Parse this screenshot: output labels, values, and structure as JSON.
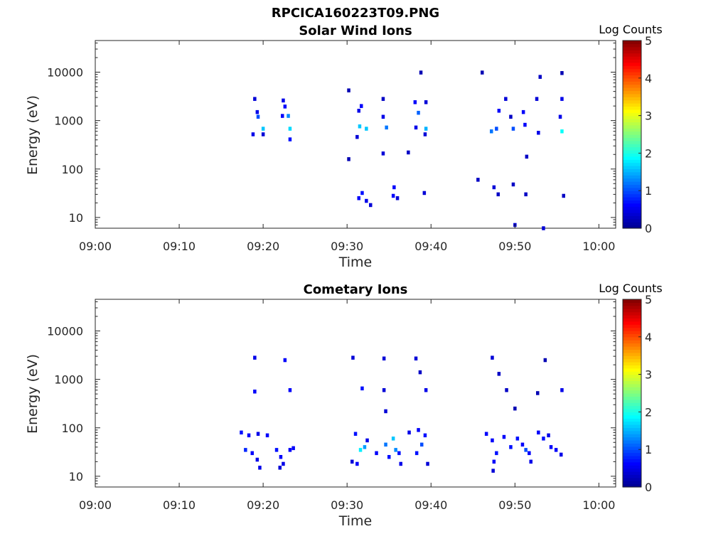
{
  "figure": {
    "title": "RPCICA160223T09.PNG"
  },
  "colors": {
    "colormap": [
      "#00008f",
      "#0000ff",
      "#0080ff",
      "#00ffff",
      "#80ff80",
      "#ffff00",
      "#ff8000",
      "#ff0000",
      "#800000"
    ]
  },
  "chart_data": [
    {
      "type": "heatmap",
      "title": "Solar Wind Ions",
      "xlabel": "Time",
      "ylabel": "Energy (eV)",
      "x_ticks": [
        "09:00",
        "09:10",
        "09:20",
        "09:30",
        "09:40",
        "09:50",
        "10:00"
      ],
      "x_tick_minutes": [
        0,
        10,
        20,
        30,
        40,
        50,
        60
      ],
      "xlim_minutes": [
        0,
        62
      ],
      "y_scale": "log",
      "ylim": [
        6,
        45000
      ],
      "y_ticks": [
        "10",
        "100",
        "1000",
        "10000"
      ],
      "y_tick_values": [
        10,
        100,
        1000,
        10000
      ],
      "colorbar": {
        "title": "Log Counts",
        "ticks": [
          "0",
          "1",
          "2",
          "3",
          "4",
          "5"
        ],
        "range": [
          0,
          5
        ]
      },
      "cells": [
        [
          19,
          2800,
          0.4
        ],
        [
          19.3,
          1500,
          0.5
        ],
        [
          19.4,
          1200,
          1.0
        ],
        [
          18.8,
          520,
          0.5
        ],
        [
          20.0,
          680,
          1.6
        ],
        [
          20.0,
          520,
          0.4
        ],
        [
          22.4,
          2600,
          0.5
        ],
        [
          22.6,
          1950,
          0.6
        ],
        [
          22.3,
          1250,
          0.6
        ],
        [
          23.0,
          1250,
          1.3
        ],
        [
          23.2,
          680,
          1.7
        ],
        [
          23.2,
          410,
          0.7
        ],
        [
          30.2,
          4200,
          0.2
        ],
        [
          31.4,
          1600,
          0.5
        ],
        [
          31.7,
          2000,
          0.6
        ],
        [
          31.5,
          760,
          1.6
        ],
        [
          32.3,
          680,
          1.6
        ],
        [
          31.2,
          460,
          0.4
        ],
        [
          30.2,
          160,
          0.2
        ],
        [
          31.4,
          25,
          0.6
        ],
        [
          31.8,
          32,
          0.7
        ],
        [
          32.3,
          22,
          0.5
        ],
        [
          32.8,
          18,
          0.4
        ],
        [
          34.3,
          2800,
          0.3
        ],
        [
          34.3,
          1200,
          0.5
        ],
        [
          34.7,
          720,
          1.2
        ],
        [
          34.3,
          210,
          0.4
        ],
        [
          35.5,
          28,
          0.6
        ],
        [
          35.6,
          42,
          0.6
        ],
        [
          36.0,
          25,
          0.4
        ],
        [
          38.1,
          2400,
          0.6
        ],
        [
          38.5,
          1450,
          1.1
        ],
        [
          38.2,
          720,
          0.5
        ],
        [
          39.4,
          680,
          1.5
        ],
        [
          39.3,
          520,
          0.4
        ],
        [
          39.2,
          32,
          0.4
        ],
        [
          37.3,
          220,
          0.3
        ],
        [
          39.4,
          2400,
          0.4
        ],
        [
          38.8,
          9800,
          0.2
        ],
        [
          46.1,
          9800,
          0.2
        ],
        [
          47.2,
          600,
          1.2
        ],
        [
          47.8,
          680,
          1.0
        ],
        [
          48.1,
          1600,
          0.6
        ],
        [
          47.5,
          42,
          0.4
        ],
        [
          48.9,
          2800,
          0.4
        ],
        [
          49.5,
          1200,
          0.3
        ],
        [
          49.8,
          680,
          1.0
        ],
        [
          51.0,
          1500,
          0.6
        ],
        [
          51.2,
          820,
          0.6
        ],
        [
          52.6,
          2800,
          0.4
        ],
        [
          52.8,
          560,
          0.5
        ],
        [
          55.6,
          2800,
          0.5
        ],
        [
          55.6,
          600,
          1.9
        ],
        [
          55.4,
          1200,
          0.5
        ],
        [
          51.4,
          180,
          0.3
        ],
        [
          50.0,
          7,
          0.4
        ],
        [
          53.4,
          6,
          0.4
        ],
        [
          45.6,
          60,
          0.3
        ],
        [
          48.0,
          30,
          0.3
        ],
        [
          49.8,
          48,
          0.3
        ],
        [
          51.3,
          30,
          0.3
        ],
        [
          53.0,
          8000,
          0.3
        ],
        [
          55.6,
          9600,
          0.2
        ],
        [
          55.8,
          28,
          0.3
        ]
      ]
    },
    {
      "type": "heatmap",
      "title": "Cometary Ions",
      "xlabel": "Time",
      "ylabel": "Energy (eV)",
      "x_ticks": [
        "09:00",
        "09:10",
        "09:20",
        "09:30",
        "09:40",
        "09:50",
        "10:00"
      ],
      "x_tick_minutes": [
        0,
        10,
        20,
        30,
        40,
        50,
        60
      ],
      "xlim_minutes": [
        0,
        62
      ],
      "y_scale": "log",
      "ylim": [
        6,
        45000
      ],
      "y_ticks": [
        "10",
        "100",
        "1000",
        "10000"
      ],
      "y_tick_values": [
        10,
        100,
        1000,
        10000
      ],
      "colorbar": {
        "title": "Log Counts",
        "ticks": [
          "0",
          "1",
          "2",
          "3",
          "4",
          "5"
        ],
        "range": [
          0,
          5
        ]
      },
      "cells": [
        [
          19.0,
          2800,
          0.5
        ],
        [
          22.6,
          2500,
          0.6
        ],
        [
          19.0,
          560,
          0.6
        ],
        [
          23.2,
          600,
          0.6
        ],
        [
          17.4,
          80,
          0.7
        ],
        [
          18.3,
          70,
          0.6
        ],
        [
          19.4,
          75,
          0.5
        ],
        [
          20.5,
          70,
          0.6
        ],
        [
          17.9,
          35,
          0.8
        ],
        [
          18.7,
          30,
          0.6
        ],
        [
          19.3,
          22,
          0.5
        ],
        [
          19.6,
          15,
          0.5
        ],
        [
          21.6,
          35,
          0.7
        ],
        [
          22.1,
          25,
          0.6
        ],
        [
          22.4,
          18,
          0.5
        ],
        [
          23.2,
          35,
          0.6
        ],
        [
          23.6,
          38,
          0.6
        ],
        [
          22.0,
          15,
          0.4
        ],
        [
          30.7,
          2800,
          0.4
        ],
        [
          31.8,
          650,
          0.7
        ],
        [
          34.4,
          2700,
          0.4
        ],
        [
          34.4,
          600,
          0.4
        ],
        [
          38.2,
          2700,
          0.4
        ],
        [
          38.7,
          1400,
          0.3
        ],
        [
          39.4,
          600,
          0.5
        ],
        [
          34.6,
          220,
          0.4
        ],
        [
          31.0,
          75,
          0.7
        ],
        [
          31.6,
          35,
          1.8
        ],
        [
          32.1,
          40,
          1.4
        ],
        [
          31.2,
          18,
          0.6
        ],
        [
          32.4,
          55,
          0.5
        ],
        [
          30.6,
          20,
          0.4
        ],
        [
          33.5,
          30,
          0.6
        ],
        [
          34.6,
          45,
          1.2
        ],
        [
          35.5,
          60,
          1.6
        ],
        [
          35.8,
          35,
          1.3
        ],
        [
          36.2,
          30,
          0.7
        ],
        [
          35.0,
          25,
          0.7
        ],
        [
          36.4,
          18,
          0.5
        ],
        [
          37.4,
          80,
          0.5
        ],
        [
          38.3,
          30,
          0.7
        ],
        [
          38.9,
          45,
          1.0
        ],
        [
          39.3,
          70,
          0.7
        ],
        [
          38.5,
          90,
          0.6
        ],
        [
          39.6,
          18,
          0.4
        ],
        [
          47.3,
          2800,
          0.4
        ],
        [
          48.1,
          1300,
          0.3
        ],
        [
          49.0,
          600,
          0.3
        ],
        [
          46.6,
          75,
          0.6
        ],
        [
          47.3,
          55,
          0.6
        ],
        [
          47.8,
          30,
          0.7
        ],
        [
          47.5,
          20,
          0.6
        ],
        [
          48.7,
          65,
          0.6
        ],
        [
          49.5,
          40,
          0.7
        ],
        [
          50.3,
          60,
          0.7
        ],
        [
          50.9,
          45,
          0.6
        ],
        [
          51.3,
          35,
          1.0
        ],
        [
          51.7,
          30,
          0.6
        ],
        [
          51.9,
          20,
          0.5
        ],
        [
          52.8,
          80,
          0.6
        ],
        [
          53.4,
          60,
          0.7
        ],
        [
          54.0,
          70,
          0.5
        ],
        [
          54.3,
          40,
          0.6
        ],
        [
          54.9,
          35,
          0.6
        ],
        [
          55.5,
          28,
          0.5
        ],
        [
          47.4,
          13,
          0.4
        ],
        [
          50.0,
          250,
          0.2
        ],
        [
          52.7,
          520,
          0.2
        ],
        [
          53.6,
          2500,
          0.2
        ],
        [
          55.6,
          600,
          0.5
        ]
      ]
    }
  ]
}
